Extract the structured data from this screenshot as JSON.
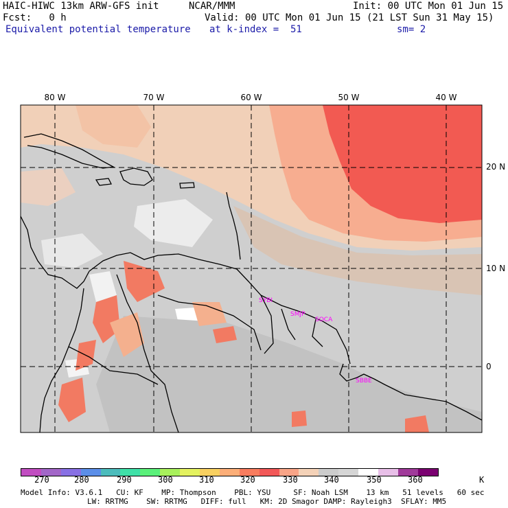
{
  "header": {
    "model": "HAIC-HIWC 13km ARW-GFS init",
    "org": "NCAR/MMM",
    "init": "Init: 00 UTC Mon 01 Jun 15",
    "fcst": "Fcst:   0 h",
    "valid": "Valid: 00 UTC Mon 01 Jun 15 (21 LST Sun 31 May 15)",
    "field": "Equivalent potential temperature",
    "level": "at k-index =  51",
    "sm": "sm= 2"
  },
  "map": {
    "lon_labels": [
      "80 W",
      "70 W",
      "60 W",
      "50 W",
      "40 W"
    ],
    "lat_labels": [
      "20 N",
      "10 N",
      "0"
    ],
    "stations": [
      "SYBI",
      "SMJP",
      "SOCA",
      "SBBE"
    ]
  },
  "colorbar": {
    "colors": [
      "#c14dc1",
      "#a266c8",
      "#8870e4",
      "#5b8ee8",
      "#4cbcbc",
      "#3fe0a8",
      "#5af07a",
      "#a8f05c",
      "#e4f260",
      "#f8d060",
      "#fcae78",
      "#f87c5e",
      "#f25858",
      "#f8a487",
      "#f4d2b8",
      "#cccccc",
      "#d6d6d6",
      "#ffffff",
      "#e8bfe8",
      "#a03a9a",
      "#7a0070"
    ],
    "ticks": [
      "270",
      "280",
      "290",
      "300",
      "310",
      "320",
      "330",
      "340",
      "350",
      "360"
    ],
    "unit": "K"
  },
  "footer": {
    "line1": "Model Info: V3.6.1   CU: KF    MP: Thompson    PBL: YSU     SF: Noah LSM    13 km   51 levels   60 sec",
    "line2": "LW: RRTMG    SW: RRTMG   DIFF: full   KM: 2D Smagor DAMP: Rayleigh3  SFLAY: MM5"
  }
}
